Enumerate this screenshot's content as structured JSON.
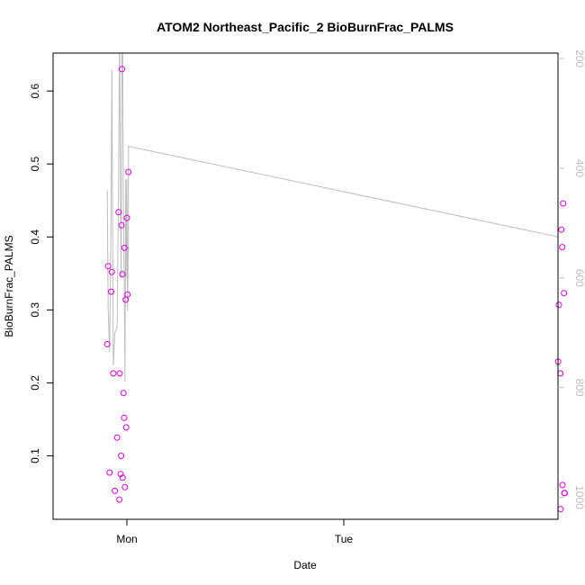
{
  "chart_data": {
    "type": "scatter",
    "title": "ATOM2 Northeast_Pacific_2 BioBurnFrac_PALMS",
    "xlabel": "Date",
    "ylabel": "BioBurnFrac_PALMS",
    "x_ticks": [
      "Mon",
      "Tue"
    ],
    "y_ticks": [
      "0.1",
      "0.2",
      "0.3",
      "0.4",
      "0.5",
      "0.6"
    ],
    "y2_ticks": [
      "200",
      "400",
      "600",
      "800",
      "1000"
    ],
    "colors": {
      "points": "#e000e0",
      "line": "#bdbdbd",
      "axis": "#000000",
      "axis2": "#bdbdbd"
    },
    "ylim": [
      0.013,
      0.652
    ],
    "y2lim": [
      1040,
      190
    ],
    "series": [
      {
        "type": "scatter",
        "points": [
          {
            "t": "Sun 21:50",
            "y": 0.253
          },
          {
            "t": "Sun 21:55",
            "y": 0.36
          },
          {
            "t": "Sun 22:05",
            "y": 0.077
          },
          {
            "t": "Sun 22:15",
            "y": 0.325
          },
          {
            "t": "Sun 22:20",
            "y": 0.352
          },
          {
            "t": "Sun 22:30",
            "y": 0.213
          },
          {
            "t": "Sun 22:40",
            "y": 0.052
          },
          {
            "t": "Sun 22:55",
            "y": 0.125
          },
          {
            "t": "Sun 23:05",
            "y": 0.434
          },
          {
            "t": "Sun 23:10",
            "y": 0.04
          },
          {
            "t": "Sun 23:12",
            "y": 0.213
          },
          {
            "t": "Sun 23:18",
            "y": 0.075
          },
          {
            "t": "Sun 23:22",
            "y": 0.1
          },
          {
            "t": "Sun 23:25",
            "y": 0.416
          },
          {
            "t": "Sun 23:27",
            "y": 0.63
          },
          {
            "t": "Sun 23:30",
            "y": 0.349
          },
          {
            "t": "Sun 23:32",
            "y": 0.07
          },
          {
            "t": "Sun 23:37",
            "y": 0.186
          },
          {
            "t": "Sun 23:42",
            "y": 0.152
          },
          {
            "t": "Sun 23:44",
            "y": 0.385
          },
          {
            "t": "Sun 23:47",
            "y": 0.057
          },
          {
            "t": "Sun 23:52",
            "y": 0.314
          },
          {
            "t": "Sun 23:55",
            "y": 0.139
          },
          {
            "t": "Mon 00:00",
            "y": 0.426
          },
          {
            "t": "Mon 00:04",
            "y": 0.321
          },
          {
            "t": "Mon 00:10",
            "y": 0.489
          },
          {
            "t": "Tue 23:43",
            "y": 0.229
          },
          {
            "t": "Tue 23:48",
            "y": 0.307
          },
          {
            "t": "Tue 23:58",
            "y": 0.213
          },
          {
            "t": "Wed 00:00",
            "y": 0.027
          },
          {
            "t": "Wed 00:04",
            "y": 0.41
          },
          {
            "t": "Wed 00:10",
            "y": 0.386
          },
          {
            "t": "Wed 00:12",
            "y": 0.06
          },
          {
            "t": "Wed 00:16",
            "y": 0.446
          },
          {
            "t": "Wed 00:22",
            "y": 0.323
          },
          {
            "t": "Wed 00:24",
            "y": 0.049
          },
          {
            "t": "Wed 00:26",
            "y": 0.049
          }
        ]
      },
      {
        "type": "line",
        "axis": "right",
        "points": [
          {
            "t": "Sun 21:50",
            "y2": 440
          },
          {
            "t": "Sun 21:55",
            "y2": 650
          },
          {
            "t": "Sun 22:05",
            "y2": 735
          },
          {
            "t": "Sun 22:15",
            "y2": 480
          },
          {
            "t": "Sun 22:20",
            "y2": 220
          },
          {
            "t": "Sun 22:30",
            "y2": 760
          },
          {
            "t": "Sun 22:40",
            "y2": 700
          },
          {
            "t": "Sun 22:55",
            "y": 0.0,
            "y2": 690
          },
          {
            "t": "Sun 23:05",
            "y2": 420
          },
          {
            "t": "Sun 23:10",
            "y2": 190
          },
          {
            "t": "Sun 23:12",
            "y2": 190
          },
          {
            "t": "Sun 23:18",
            "y2": 500
          },
          {
            "t": "Sun 23:22",
            "y2": 600
          },
          {
            "t": "Sun 23:27",
            "y2": 190
          },
          {
            "t": "Sun 23:32",
            "y2": 190
          },
          {
            "t": "Sun 23:37",
            "y2": 480
          },
          {
            "t": "Sun 23:44",
            "y2": 650
          },
          {
            "t": "Sun 23:47",
            "y2": 790
          },
          {
            "t": "Sun 23:52",
            "y2": 420
          },
          {
            "t": "Sun 23:55",
            "y2": 600
          },
          {
            "t": "Mon 00:00",
            "y2": 420
          },
          {
            "t": "Mon 00:04",
            "y2": 660
          },
          {
            "t": "Mon 00:10",
            "y2": 525
          },
          {
            "t": "Mon 00:10",
            "y2": 360
          },
          {
            "t": "Tue 23:43",
            "y2": 525
          },
          {
            "t": "Tue 23:48",
            "y2": 430
          },
          {
            "t": "Tue 23:58",
            "y2": 560
          },
          {
            "t": "Wed 00:00",
            "y2": 190
          },
          {
            "t": "Wed 00:04",
            "y2": 190
          },
          {
            "t": "Wed 00:10",
            "y2": 480
          },
          {
            "t": "Wed 00:12",
            "y2": 400
          },
          {
            "t": "Wed 00:16",
            "y2": 570
          },
          {
            "t": "Wed 00:22",
            "y2": 190
          },
          {
            "t": "Wed 00:26",
            "y2": 190
          }
        ]
      }
    ]
  }
}
